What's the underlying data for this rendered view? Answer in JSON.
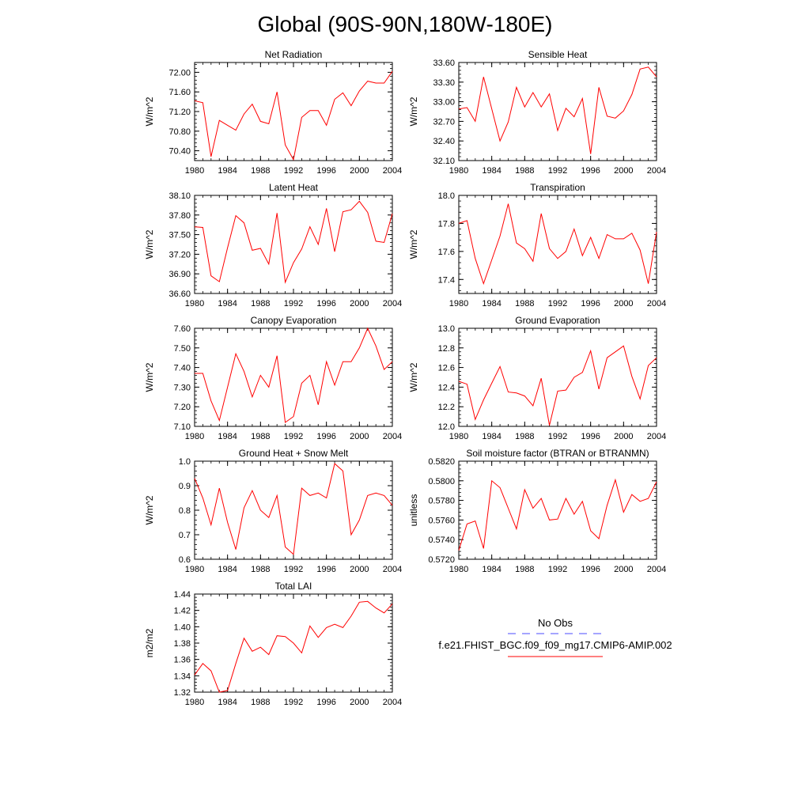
{
  "title": "Global (90S-90N,180W-180E)",
  "legend": {
    "obs_label": "No Obs",
    "obs_color": "#4b4bff",
    "model_label": "f.e21.FHIST_BGC.f09_f09_mg17.CMIP6-AMIP.002",
    "model_color": "#ff0000"
  },
  "chart_data": [
    {
      "type": "line",
      "title": "Net Radiation",
      "ylabel": "W/m^2",
      "x": [
        1980,
        1981,
        1982,
        1983,
        1984,
        1985,
        1986,
        1987,
        1988,
        1989,
        1990,
        1991,
        1992,
        1993,
        1994,
        1995,
        1996,
        1997,
        1998,
        1999,
        2000,
        2001,
        2002,
        2003,
        2004
      ],
      "values": [
        71.42,
        71.38,
        70.28,
        71.02,
        70.92,
        70.82,
        71.15,
        71.35,
        71.0,
        70.95,
        71.6,
        70.52,
        70.22,
        71.08,
        71.22,
        71.22,
        70.92,
        71.45,
        71.58,
        71.32,
        71.62,
        71.82,
        71.78,
        71.78,
        72.02
      ],
      "ylim": [
        70.2,
        72.2
      ],
      "yticks": [
        70.4,
        70.8,
        71.2,
        71.6,
        72.0
      ],
      "ytick_labels": [
        "70.40",
        "70.80",
        "71.20",
        "71.60",
        "72.00"
      ],
      "xticks": [
        1980,
        1984,
        1988,
        1992,
        1996,
        2000,
        2004
      ],
      "xtick_labels": [
        "1980",
        "1984",
        "1988",
        "1992",
        "1996",
        "2000",
        "2004"
      ]
    },
    {
      "type": "line",
      "title": "Sensible Heat",
      "ylabel": "W/m^2",
      "x": [
        1980,
        1981,
        1982,
        1983,
        1984,
        1985,
        1986,
        1987,
        1988,
        1989,
        1990,
        1991,
        1992,
        1993,
        1994,
        1995,
        1996,
        1997,
        1998,
        1999,
        2000,
        2001,
        2002,
        2003,
        2004
      ],
      "values": [
        32.89,
        32.91,
        32.7,
        33.38,
        32.89,
        32.4,
        32.69,
        33.22,
        32.92,
        33.14,
        32.92,
        33.12,
        32.56,
        32.9,
        32.77,
        33.05,
        32.2,
        33.22,
        32.78,
        32.75,
        32.86,
        33.11,
        33.5,
        33.53,
        33.38
      ],
      "ylim": [
        32.1,
        33.6
      ],
      "yticks": [
        32.1,
        32.4,
        32.7,
        33.0,
        33.3,
        33.6
      ],
      "ytick_labels": [
        "32.10",
        "32.40",
        "32.70",
        "33.00",
        "33.30",
        "33.60"
      ],
      "xticks": [
        1980,
        1984,
        1988,
        1992,
        1996,
        2000,
        2004
      ],
      "xtick_labels": [
        "1980",
        "1984",
        "1988",
        "1992",
        "1996",
        "2000",
        "2004"
      ]
    },
    {
      "type": "line",
      "title": "Latent Heat",
      "ylabel": "W/m^2",
      "x": [
        1980,
        1981,
        1982,
        1983,
        1984,
        1985,
        1986,
        1987,
        1988,
        1989,
        1990,
        1991,
        1992,
        1993,
        1994,
        1995,
        1996,
        1997,
        1998,
        1999,
        2000,
        2001,
        2002,
        2003,
        2004
      ],
      "values": [
        37.62,
        37.61,
        36.87,
        36.78,
        37.3,
        37.79,
        37.68,
        37.26,
        37.29,
        37.05,
        37.83,
        36.77,
        37.07,
        37.28,
        37.62,
        37.35,
        37.9,
        37.24,
        37.85,
        37.88,
        38.01,
        37.84,
        37.4,
        37.38,
        37.82
      ],
      "ylim": [
        36.6,
        38.1
      ],
      "yticks": [
        36.6,
        36.9,
        37.2,
        37.5,
        37.8,
        38.1
      ],
      "ytick_labels": [
        "36.60",
        "36.90",
        "37.20",
        "37.50",
        "37.80",
        "38.10"
      ],
      "xticks": [
        1980,
        1984,
        1988,
        1992,
        1996,
        2000,
        2004
      ],
      "xtick_labels": [
        "1980",
        "1984",
        "1988",
        "1992",
        "1996",
        "2000",
        "2004"
      ]
    },
    {
      "type": "line",
      "title": "Transpiration",
      "ylabel": "W/m^2",
      "x": [
        1980,
        1981,
        1982,
        1983,
        1984,
        1985,
        1986,
        1987,
        1988,
        1989,
        1990,
        1991,
        1992,
        1993,
        1994,
        1995,
        1996,
        1997,
        1998,
        1999,
        2000,
        2001,
        2002,
        2003,
        2004
      ],
      "values": [
        17.8,
        17.82,
        17.55,
        17.37,
        17.54,
        17.71,
        17.94,
        17.66,
        17.62,
        17.53,
        17.87,
        17.62,
        17.55,
        17.6,
        17.76,
        17.57,
        17.7,
        17.55,
        17.72,
        17.69,
        17.69,
        17.73,
        17.61,
        17.37,
        17.74
      ],
      "ylim": [
        17.3,
        18.0
      ],
      "yticks": [
        17.4,
        17.6,
        17.8,
        18.0
      ],
      "ytick_labels": [
        "17.4",
        "17.6",
        "17.8",
        "18.0"
      ],
      "xticks": [
        1980,
        1984,
        1988,
        1992,
        1996,
        2000,
        2004
      ],
      "xtick_labels": [
        "1980",
        "1984",
        "1988",
        "1992",
        "1996",
        "2000",
        "2004"
      ]
    },
    {
      "type": "line",
      "title": "Canopy Evaporation",
      "ylabel": "W/m^2",
      "x": [
        1980,
        1981,
        1982,
        1983,
        1984,
        1985,
        1986,
        1987,
        1988,
        1989,
        1990,
        1991,
        1992,
        1993,
        1994,
        1995,
        1996,
        1997,
        1998,
        1999,
        2000,
        2001,
        2002,
        2003,
        2004
      ],
      "values": [
        7.37,
        7.37,
        7.23,
        7.13,
        7.3,
        7.47,
        7.38,
        7.25,
        7.36,
        7.3,
        7.46,
        7.12,
        7.15,
        7.32,
        7.36,
        7.21,
        7.43,
        7.31,
        7.43,
        7.43,
        7.5,
        7.6,
        7.51,
        7.39,
        7.43
      ],
      "ylim": [
        7.1,
        7.6
      ],
      "yticks": [
        7.1,
        7.2,
        7.3,
        7.4,
        7.5,
        7.6
      ],
      "ytick_labels": [
        "7.10",
        "7.20",
        "7.30",
        "7.40",
        "7.50",
        "7.60"
      ],
      "xticks": [
        1980,
        1984,
        1988,
        1992,
        1996,
        2000,
        2004
      ],
      "xtick_labels": [
        "1980",
        "1984",
        "1988",
        "1992",
        "1996",
        "2000",
        "2004"
      ]
    },
    {
      "type": "line",
      "title": "Ground Evaporation",
      "ylabel": "W/m^2",
      "x": [
        1980,
        1981,
        1982,
        1983,
        1984,
        1985,
        1986,
        1987,
        1988,
        1989,
        1990,
        1991,
        1992,
        1993,
        1994,
        1995,
        1996,
        1997,
        1998,
        1999,
        2000,
        2001,
        2002,
        2003,
        2004
      ],
      "values": [
        12.46,
        12.43,
        12.07,
        12.27,
        12.44,
        12.61,
        12.35,
        12.34,
        12.31,
        12.21,
        12.49,
        12.01,
        12.36,
        12.37,
        12.5,
        12.55,
        12.77,
        12.38,
        12.7,
        12.76,
        12.82,
        12.51,
        12.28,
        12.62,
        12.7
      ],
      "ylim": [
        12.0,
        13.0
      ],
      "yticks": [
        12.0,
        12.2,
        12.4,
        12.6,
        12.8,
        13.0
      ],
      "ytick_labels": [
        "12.0",
        "12.2",
        "12.4",
        "12.6",
        "12.8",
        "13.0"
      ],
      "xticks": [
        1980,
        1984,
        1988,
        1992,
        1996,
        2000,
        2004
      ],
      "xtick_labels": [
        "1980",
        "1984",
        "1988",
        "1992",
        "1996",
        "2000",
        "2004"
      ]
    },
    {
      "type": "line",
      "title": "Ground Heat + Snow Melt",
      "ylabel": "W/m^2",
      "x": [
        1980,
        1981,
        1982,
        1983,
        1984,
        1985,
        1986,
        1987,
        1988,
        1989,
        1990,
        1991,
        1992,
        1993,
        1994,
        1995,
        1996,
        1997,
        1998,
        1999,
        2000,
        2001,
        2002,
        2003,
        2004
      ],
      "values": [
        0.93,
        0.85,
        0.74,
        0.89,
        0.75,
        0.64,
        0.81,
        0.88,
        0.8,
        0.77,
        0.86,
        0.65,
        0.62,
        0.89,
        0.86,
        0.87,
        0.85,
        0.99,
        0.96,
        0.7,
        0.76,
        0.86,
        0.87,
        0.86,
        0.82
      ],
      "ylim": [
        0.6,
        1.0
      ],
      "yticks": [
        0.6,
        0.7,
        0.8,
        0.9,
        1.0
      ],
      "ytick_labels": [
        "0.6",
        "0.7",
        "0.8",
        "0.9",
        "1.0"
      ],
      "xticks": [
        1980,
        1984,
        1988,
        1992,
        1996,
        2000,
        2004
      ],
      "xtick_labels": [
        "1980",
        "1984",
        "1988",
        "1992",
        "1996",
        "2000",
        "2004"
      ]
    },
    {
      "type": "line",
      "title": "Soil moisture factor (BTRAN or BTRANMN)",
      "ylabel": "unitless",
      "x": [
        1980,
        1981,
        1982,
        1983,
        1984,
        1985,
        1986,
        1987,
        1988,
        1989,
        1990,
        1991,
        1992,
        1993,
        1994,
        1995,
        1996,
        1997,
        1998,
        1999,
        2000,
        2001,
        2002,
        2003,
        2004
      ],
      "values": [
        0.5729,
        0.5756,
        0.5759,
        0.5731,
        0.58,
        0.5793,
        0.5772,
        0.5751,
        0.5791,
        0.5772,
        0.5782,
        0.576,
        0.5761,
        0.5782,
        0.5766,
        0.5779,
        0.5749,
        0.5741,
        0.5775,
        0.5801,
        0.5768,
        0.5786,
        0.5779,
        0.5782,
        0.5799
      ],
      "ylim": [
        0.572,
        0.582
      ],
      "yticks": [
        0.572,
        0.574,
        0.576,
        0.578,
        0.58,
        0.582
      ],
      "ytick_labels": [
        "0.5720",
        "0.5740",
        "0.5760",
        "0.5780",
        "0.5800",
        "0.5820"
      ],
      "xticks": [
        1980,
        1984,
        1988,
        1992,
        1996,
        2000,
        2004
      ],
      "xtick_labels": [
        "1980",
        "1984",
        "1988",
        "1992",
        "1996",
        "2000",
        "2004"
      ]
    },
    {
      "type": "line",
      "title": "Total LAI",
      "ylabel": "m2/m2",
      "x": [
        1980,
        1981,
        1982,
        1983,
        1984,
        1985,
        1986,
        1987,
        1988,
        1989,
        1990,
        1991,
        1992,
        1993,
        1994,
        1995,
        1996,
        1997,
        1998,
        1999,
        2000,
        2001,
        2002,
        2003,
        2004
      ],
      "values": [
        1.341,
        1.355,
        1.346,
        1.32,
        1.322,
        1.355,
        1.386,
        1.37,
        1.375,
        1.366,
        1.389,
        1.388,
        1.38,
        1.368,
        1.401,
        1.387,
        1.399,
        1.403,
        1.399,
        1.413,
        1.43,
        1.431,
        1.423,
        1.417,
        1.428
      ],
      "ylim": [
        1.32,
        1.44
      ],
      "yticks": [
        1.32,
        1.34,
        1.36,
        1.38,
        1.4,
        1.42,
        1.44
      ],
      "ytick_labels": [
        "1.32",
        "1.34",
        "1.36",
        "1.38",
        "1.40",
        "1.42",
        "1.44"
      ],
      "xticks": [
        1980,
        1984,
        1988,
        1992,
        1996,
        2000,
        2004
      ],
      "xtick_labels": [
        "1980",
        "1984",
        "1988",
        "1992",
        "1996",
        "2000",
        "2004"
      ]
    }
  ]
}
